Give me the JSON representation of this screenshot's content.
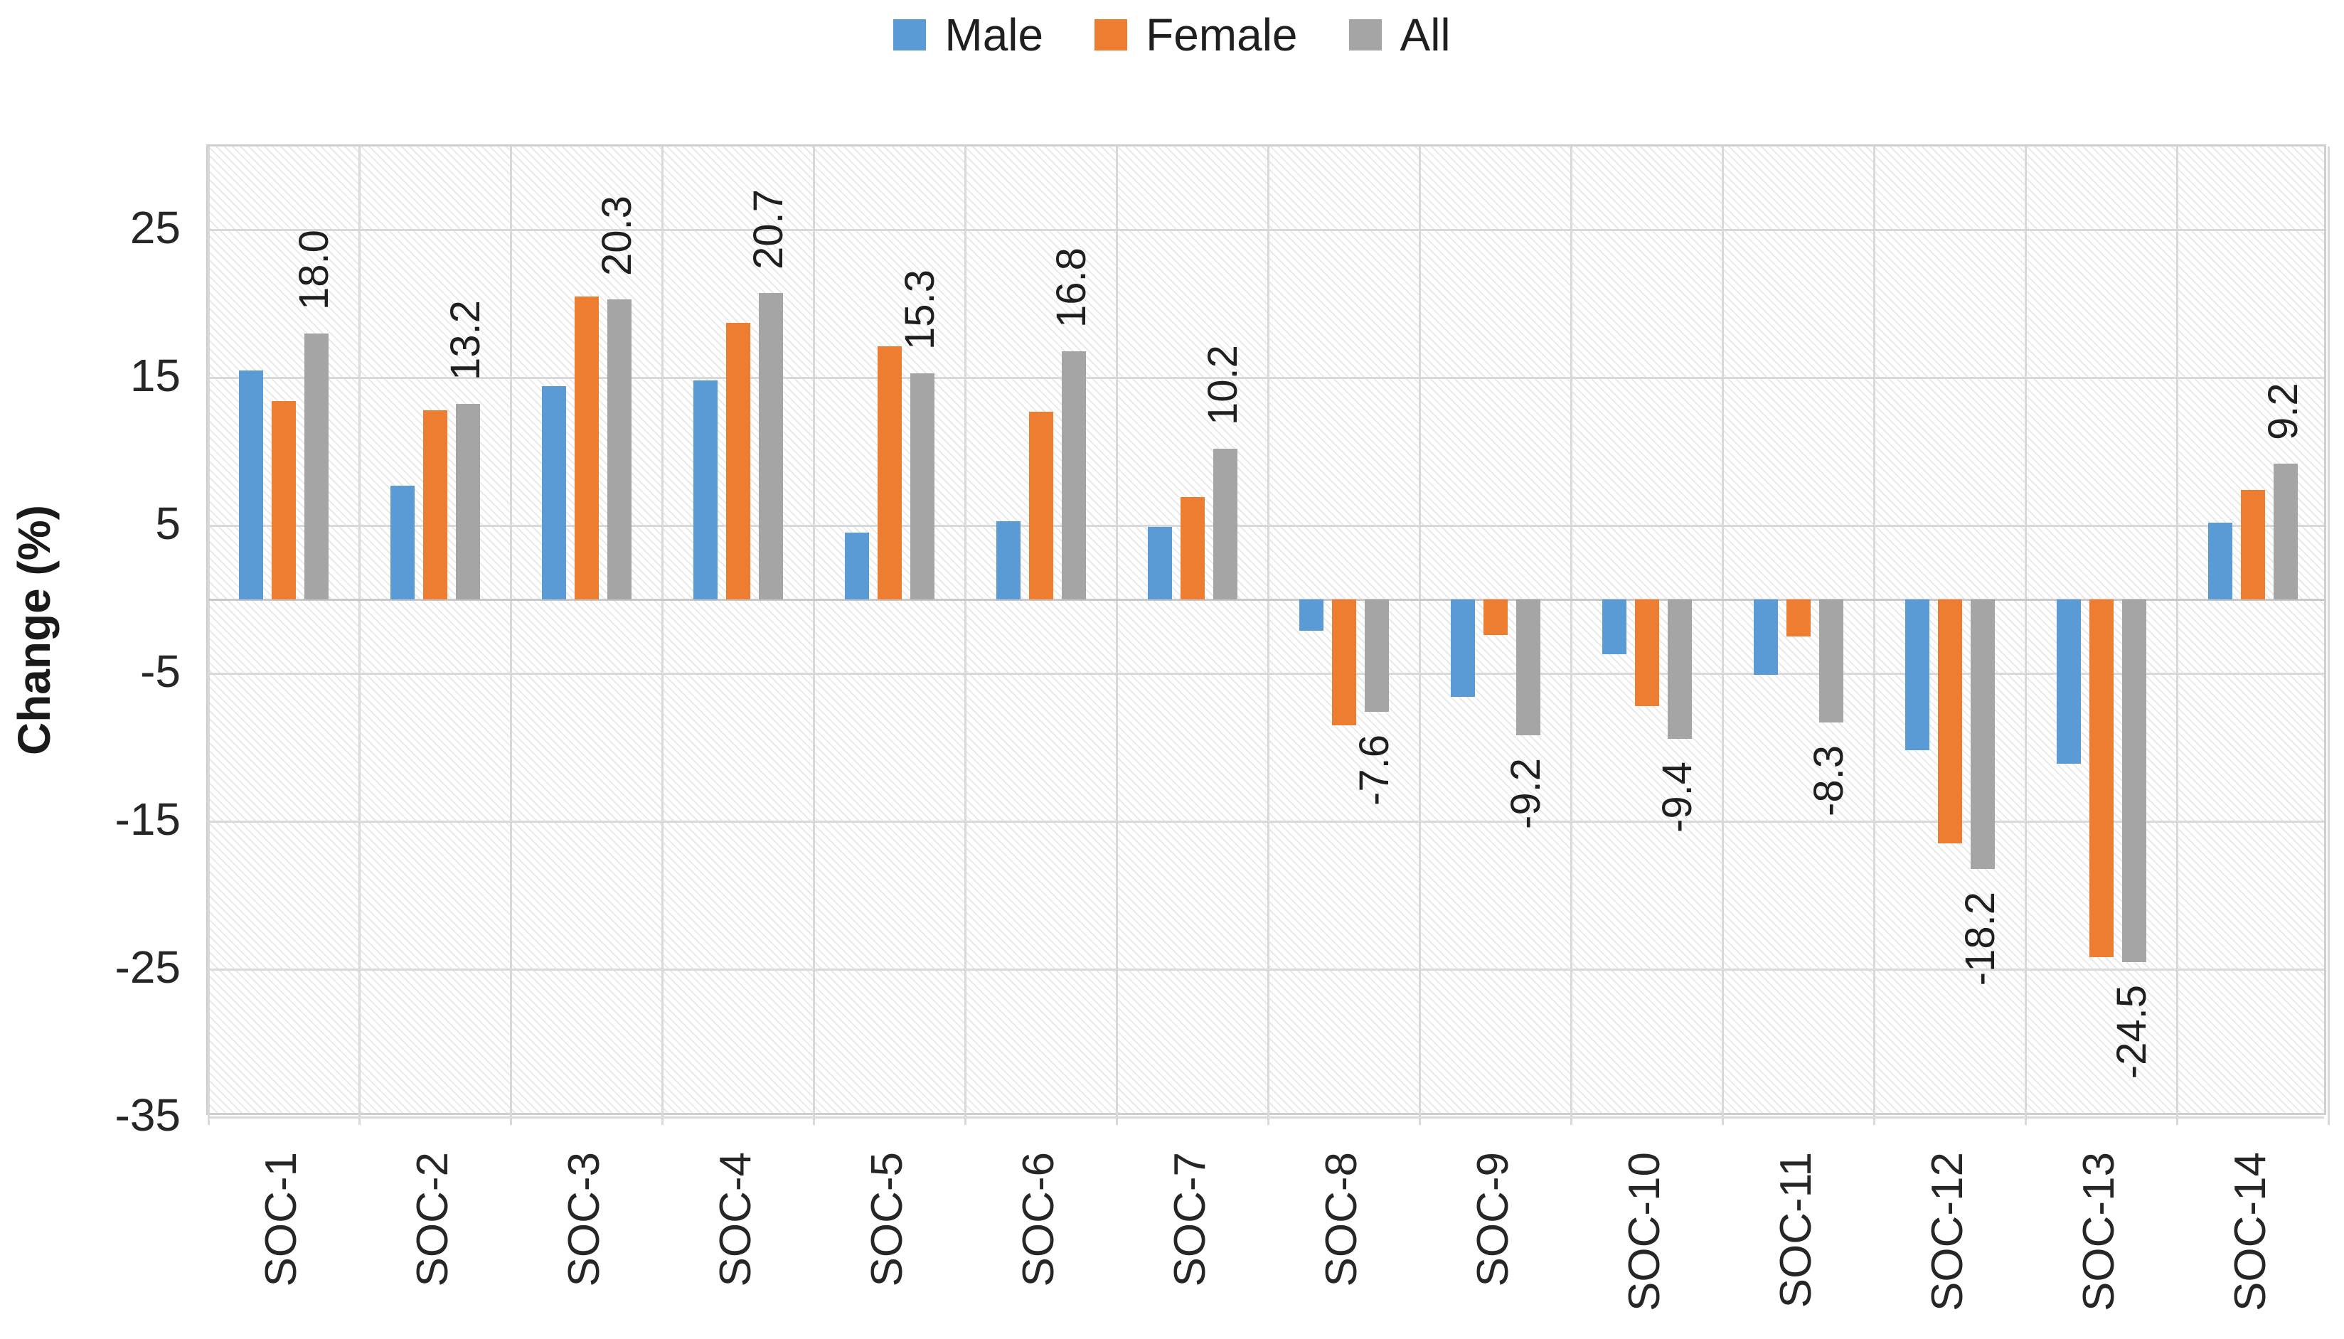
{
  "legend": [
    {
      "label": "Male",
      "color": "#5B9BD5"
    },
    {
      "label": "Female",
      "color": "#ED7D31"
    },
    {
      "label": "All",
      "color": "#A5A5A5"
    }
  ],
  "y_axis": {
    "title": "Change (%)",
    "ticks": [
      25,
      15,
      5,
      -5,
      -15,
      -25,
      -35
    ]
  },
  "chart_data": {
    "type": "bar",
    "title": "",
    "xlabel": "",
    "ylabel": "Change (%)",
    "ylim": [
      -35,
      30.6
    ],
    "grid": true,
    "legend_position": "top",
    "categories": [
      "SOC-1",
      "SOC-2",
      "SOC-3",
      "SOC-4",
      "SOC-5",
      "SOC-6",
      "SOC-7",
      "SOC-8",
      "SOC-9",
      "SOC-10",
      "SOC-11",
      "SOC-12",
      "SOC-13",
      "SOC-14"
    ],
    "series": [
      {
        "name": "Male",
        "color": "#5B9BD5",
        "values": [
          15.5,
          7.7,
          14.4,
          14.8,
          4.5,
          5.3,
          4.9,
          -2.1,
          -6.6,
          -3.7,
          -5.1,
          -10.2,
          -11.1,
          5.2
        ]
      },
      {
        "name": "Female",
        "color": "#ED7D31",
        "values": [
          13.4,
          12.8,
          20.5,
          18.7,
          17.1,
          12.7,
          6.9,
          -8.5,
          -2.4,
          -7.2,
          -2.5,
          -16.5,
          -24.2,
          7.4
        ]
      },
      {
        "name": "All",
        "color": "#A5A5A5",
        "values": [
          18.0,
          13.2,
          20.3,
          20.7,
          15.3,
          16.8,
          10.2,
          -7.6,
          -9.2,
          -9.4,
          -8.3,
          -18.2,
          -24.5,
          9.2
        ],
        "data_labels": [
          "18.0",
          "13.2",
          "20.3",
          "20.7",
          "15.3",
          "16.8",
          "10.2",
          "-7.6",
          "-9.2",
          "-9.4",
          "-8.3",
          "-18.2",
          "-24.5",
          "9.2"
        ]
      }
    ]
  }
}
